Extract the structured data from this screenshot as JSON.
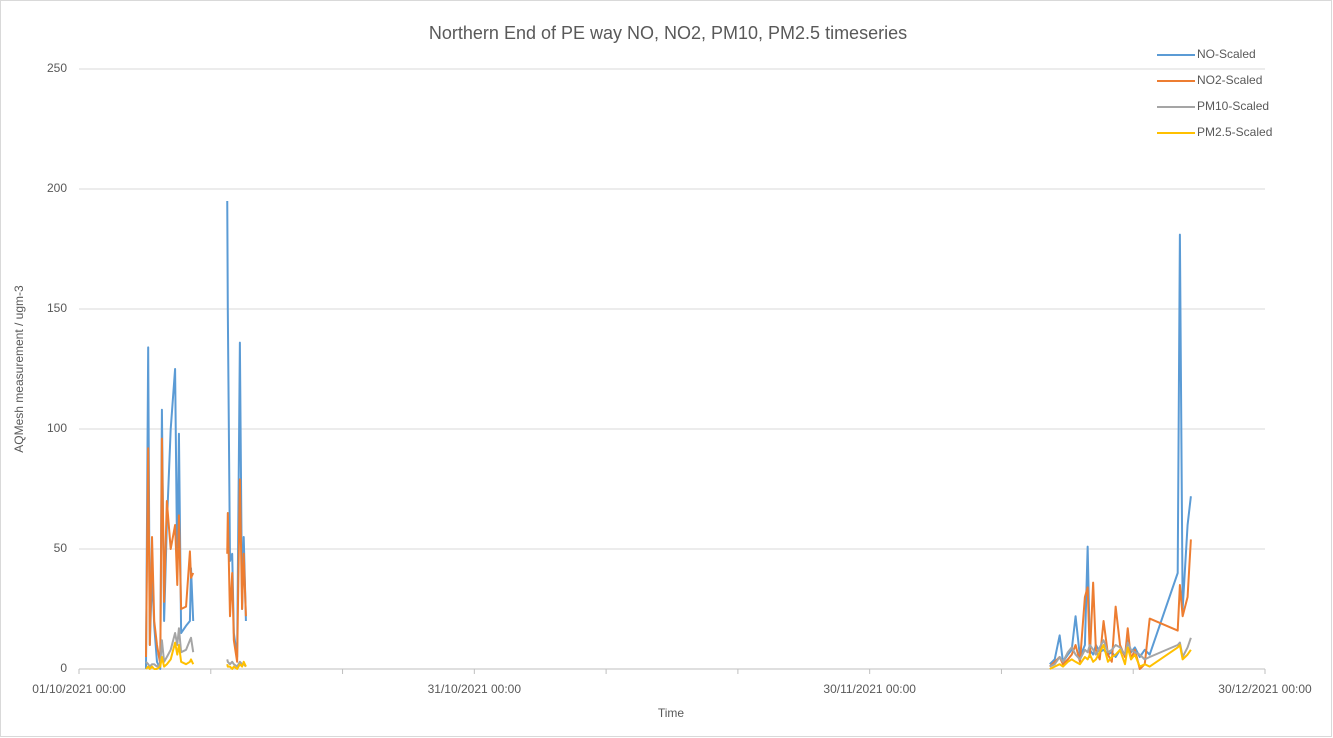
{
  "chart_data": {
    "type": "line",
    "title": "Northern End of PE way NO, NO2, PM10, PM2.5 timeseries",
    "xlabel": "Time",
    "ylabel": "AQMesh measurement / ugm-3",
    "x": [
      "2021-10-06 02:00",
      "2021-10-06 06:00",
      "2021-10-06 09:00",
      "2021-10-06 13:00",
      "2021-10-06 17:00",
      "2021-10-06 22:00",
      "2021-10-07 04:00",
      "2021-10-07 07:00",
      "2021-10-07 11:00",
      "2021-10-07 16:00",
      "2021-10-07 23:00",
      "2021-10-08 07:00",
      "2021-10-08 11:00",
      "2021-10-08 14:00",
      "2021-10-08 18:00",
      "2021-10-09 03:00",
      "2021-10-09 10:00",
      "2021-10-09 12:00",
      "2021-10-09 16:00",
      "2021-10-10 12:00",
      "2021-10-12 06:00",
      "2021-10-12 07:00",
      "2021-10-12 11:00",
      "2021-10-12 15:00",
      "2021-10-12 18:00",
      "2021-10-13 00:00",
      "2021-10-13 05:00",
      "2021-10-13 09:00",
      "2021-10-13 12:00",
      "2021-10-13 16:00",
      "2021-11-15 00:00",
      "2021-12-13 16:00",
      "2021-12-14 01:00",
      "2021-12-14 10:00",
      "2021-12-14 16:00",
      "2021-12-15 01:00",
      "2021-12-15 08:00",
      "2021-12-15 15:00",
      "2021-12-15 23:00",
      "2021-12-16 08:00",
      "2021-12-16 13:00",
      "2021-12-16 17:00",
      "2021-12-16 23:00",
      "2021-12-17 04:00",
      "2021-12-17 11:00",
      "2021-12-17 18:00",
      "2021-12-18 02:00",
      "2021-12-18 09:00",
      "2021-12-18 16:00",
      "2021-12-19 00:00",
      "2021-12-19 09:00",
      "2021-12-19 14:00",
      "2021-12-19 20:00",
      "2021-12-20 03:00",
      "2021-12-20 12:00",
      "2021-12-20 21:00",
      "2021-12-21 06:00",
      "2021-12-23 09:00",
      "2021-12-23 13:00",
      "2021-12-23 18:00",
      "2021-12-24 03:00",
      "2021-12-24 09:00"
    ],
    "series": [
      {
        "name": "NO-Scaled",
        "color": "#5b9bd5",
        "values": [
          0,
          134,
          10,
          40,
          18,
          3,
          0,
          108,
          20,
          60,
          100,
          125,
          40,
          98,
          15,
          18,
          20,
          42,
          20,
          null,
          195,
          150,
          45,
          48,
          15,
          5,
          136,
          25,
          55,
          20,
          null,
          2,
          4,
          14,
          3,
          6,
          8,
          22,
          5,
          10,
          51,
          8,
          6,
          10,
          7,
          8,
          6,
          7,
          5,
          8,
          6,
          12,
          7,
          9,
          5,
          8,
          6,
          40,
          181,
          25,
          60,
          72
        ]
      },
      {
        "name": "NO2-Scaled",
        "color": "#ed7d31",
        "values": [
          5,
          92,
          10,
          55,
          20,
          10,
          2,
          96,
          28,
          70,
          50,
          60,
          35,
          64,
          25,
          26,
          49,
          38,
          40,
          null,
          48,
          65,
          22,
          40,
          12,
          3,
          79,
          25,
          48,
          22,
          null,
          1,
          3,
          5,
          2,
          4,
          6,
          10,
          3,
          30,
          34,
          5,
          36,
          8,
          4,
          20,
          6,
          3,
          26,
          10,
          5,
          17,
          4,
          8,
          0,
          2,
          21,
          16,
          35,
          22,
          30,
          54
        ]
      },
      {
        "name": "PM10-Scaled",
        "color": "#a5a5a5",
        "values": [
          3,
          2,
          1,
          2,
          2,
          1,
          2,
          12,
          3,
          5,
          8,
          15,
          10,
          17,
          7,
          8,
          12,
          13,
          7,
          null,
          4,
          3,
          2,
          3,
          2,
          1,
          3,
          2,
          2,
          1,
          null,
          1,
          2,
          5,
          3,
          7,
          9,
          6,
          4,
          8,
          7,
          10,
          8,
          6,
          9,
          12,
          7,
          8,
          10,
          9,
          6,
          11,
          8,
          7,
          6,
          4,
          5,
          10,
          11,
          5,
          9,
          13
        ]
      },
      {
        "name": "PM2.5-Scaled",
        "color": "#ffc000",
        "values": [
          0,
          1,
          0,
          1,
          0,
          0,
          1,
          5,
          1,
          2,
          4,
          11,
          6,
          10,
          3,
          2,
          3,
          4,
          2,
          null,
          2,
          1,
          1,
          0,
          1,
          0,
          2,
          1,
          3,
          1,
          null,
          0,
          1,
          2,
          1,
          3,
          4,
          3,
          2,
          5,
          4,
          6,
          3,
          4,
          7,
          10,
          3,
          5,
          6,
          8,
          2,
          9,
          4,
          6,
          1,
          2,
          1,
          9,
          10,
          4,
          6,
          8
        ]
      }
    ],
    "xlim": [
      "2021-10-01 00:00",
      "2021-12-30 00:00"
    ],
    "xticks": [
      {
        "value": "2021-10-01 00:00",
        "label": "01/10/2021 00:00"
      },
      {
        "value": "2021-10-31 00:00",
        "label": "31/10/2021 00:00"
      },
      {
        "value": "2021-11-30 00:00",
        "label": "30/11/2021 00:00"
      },
      {
        "value": "2021-12-30 00:00",
        "label": "30/12/2021 00:00"
      }
    ],
    "xminorticks": [
      "2021-10-11 00:00",
      "2021-10-21 00:00",
      "2021-11-10 00:00",
      "2021-11-20 00:00",
      "2021-12-10 00:00",
      "2021-12-20 00:00"
    ],
    "ylim": [
      0,
      250
    ],
    "yticks": [
      0,
      50,
      100,
      150,
      200,
      250
    ],
    "grid": true,
    "legend": "top-right"
  }
}
